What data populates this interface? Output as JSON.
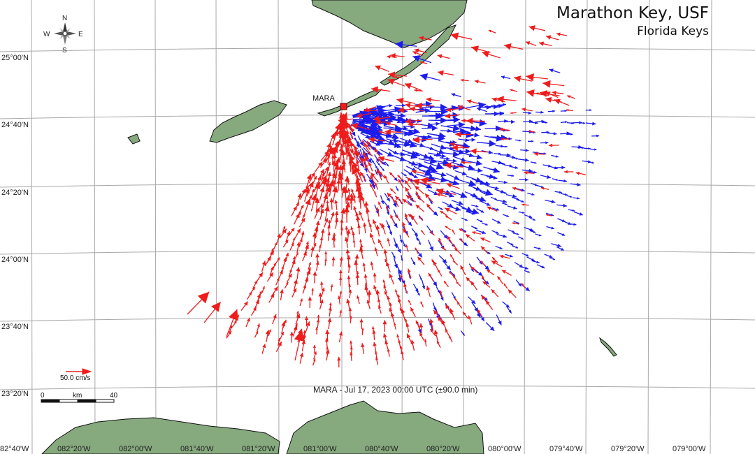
{
  "header": {
    "title": "Marathon Key, USF",
    "subtitle": "Florida Keys"
  },
  "station": {
    "label": "MARA",
    "color": "#ee1c1c"
  },
  "caption": "MARA - Jul 17, 2023 00:00 UTC (±90.0 min)",
  "latitude_labels": [
    "25°00'N",
    "24°40'N",
    "24°20'N",
    "24°00'N",
    "23°40'N",
    "23°20'N"
  ],
  "longitude_labels": [
    "82°40'W",
    "082°20'W",
    "082°00'W",
    "081°40'W",
    "081°20'W",
    "081°00'W",
    "080°40'W",
    "080°20'W",
    "080°00'W",
    "079°40'W",
    "079°20'W",
    "079°00'W"
  ],
  "compass": {
    "n": "N",
    "s": "S",
    "e": "E",
    "w": "W",
    "icon": "compass-rose-icon"
  },
  "reference_vector": {
    "label": "50.0 cm/s",
    "color": "#ee1c1c"
  },
  "scale_bar": {
    "start": "0",
    "unit": "km",
    "end": "40"
  },
  "colors": {
    "land": "#86a97e",
    "land_outline": "#111111",
    "grid": "#9a9a9a",
    "vector_toward": "#ee1c1c",
    "vector_away": "#1c1cee"
  }
}
